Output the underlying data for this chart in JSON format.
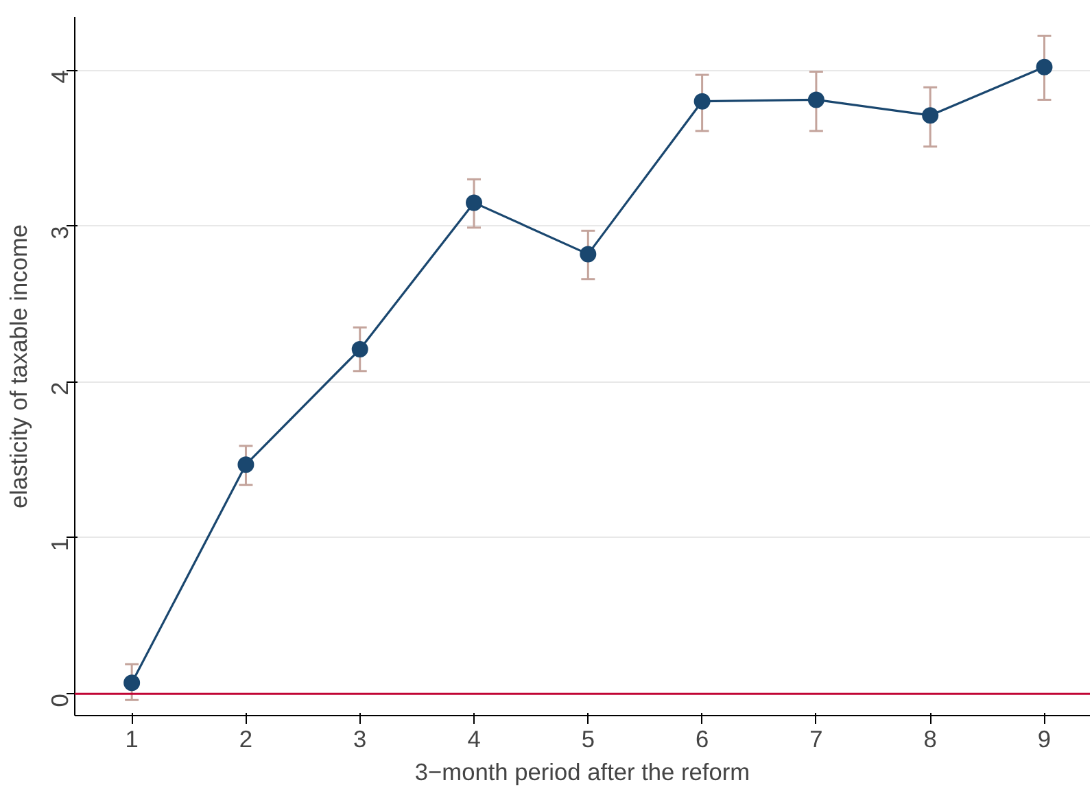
{
  "chart_data": {
    "type": "line",
    "xlabel": "3−month period after the reform",
    "ylabel": "elasticity of taxable income",
    "x": [
      1,
      2,
      3,
      4,
      5,
      6,
      7,
      8,
      9
    ],
    "series": [
      {
        "color": "#1a476f",
        "values": [
          0.07,
          1.47,
          2.21,
          3.15,
          2.82,
          3.8,
          3.81,
          3.71,
          4.02
        ],
        "errors": [
          [
            -0.04,
            0.19
          ],
          [
            1.34,
            1.59
          ],
          [
            2.07,
            2.35
          ],
          [
            2.99,
            3.3
          ],
          [
            2.66,
            2.97
          ],
          [
            3.61,
            3.97
          ],
          [
            3.61,
            3.99
          ],
          [
            3.51,
            3.89
          ],
          [
            3.81,
            4.22
          ]
        ]
      }
    ],
    "xlim": [
      0.5,
      9.4
    ],
    "ylim": [
      -0.14,
      4.34
    ],
    "xticks": [
      1,
      2,
      3,
      4,
      5,
      6,
      7,
      8,
      9
    ],
    "yticks": [
      0,
      1,
      2,
      3,
      4
    ],
    "ref_lines": [
      {
        "axis": "y",
        "value": 0,
        "color": "#c10534"
      }
    ],
    "grid": "y",
    "marker": "circle",
    "line_style": "solid"
  }
}
